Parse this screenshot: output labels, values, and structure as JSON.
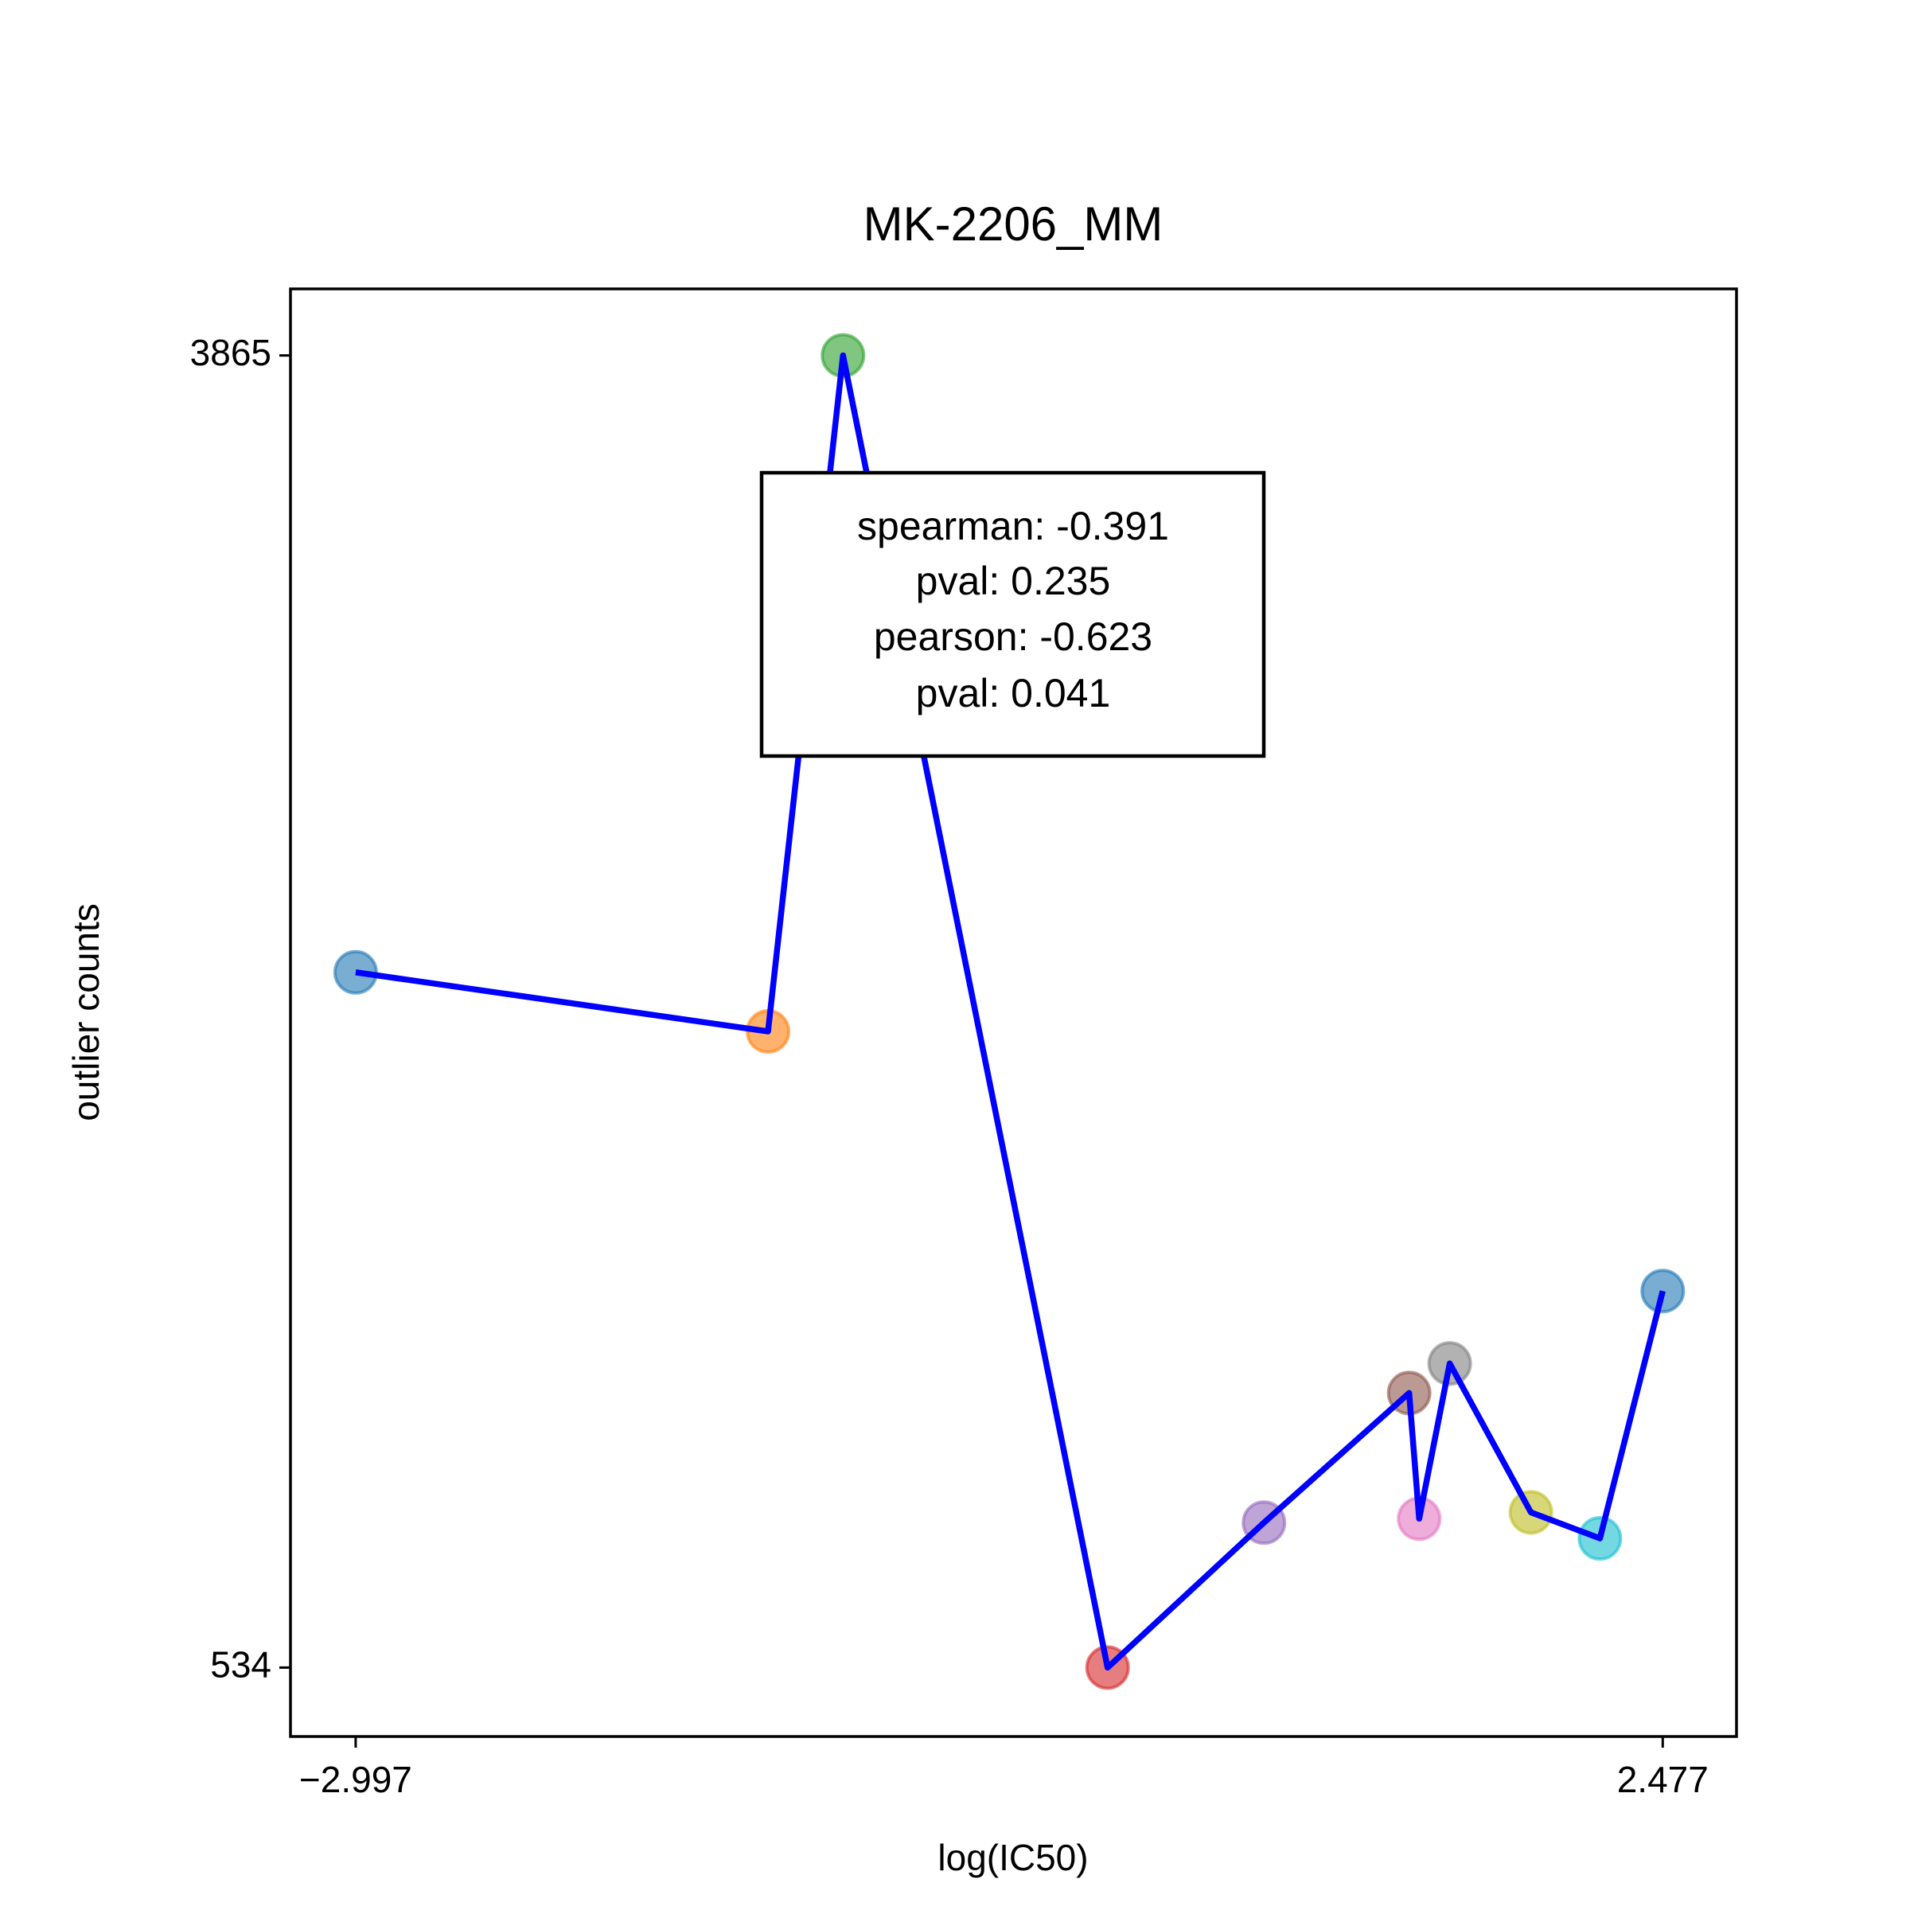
{
  "chart_data": {
    "type": "line",
    "title": "MK-2206_MM",
    "x_label": "log(IC50)",
    "y_label": "outlier counts",
    "x": [
      -2.997,
      -1.27,
      -0.956,
      0.152,
      0.807,
      1.415,
      1.457,
      1.585,
      1.925,
      2.214,
      2.477
    ],
    "values": [
      2299,
      2149,
      3865,
      534,
      902,
      1231,
      912,
      1306,
      928,
      862,
      1490
    ],
    "line_color": "#0000ff",
    "marker_colors": [
      "#1f77b4",
      "#ff7f0e",
      "#2ca02c",
      "#d62728",
      "#9467bd",
      "#8c564b",
      "#e377c2",
      "#7f7f7f",
      "#bcbd22",
      "#17becf",
      "#1f77b4"
    ],
    "xlim": [
      -3.27,
      2.786
    ],
    "ylim": [
      359,
      4034
    ],
    "xticks": [
      {
        "value": -2.997,
        "label": "−2.997"
      },
      {
        "value": 2.477,
        "label": "2.477"
      }
    ],
    "yticks": [
      534,
      3865
    ],
    "annotation": [
      "spearman: -0.391",
      "pval: 0.235",
      "pearson: -0.623",
      "pval: 0.041"
    ]
  }
}
